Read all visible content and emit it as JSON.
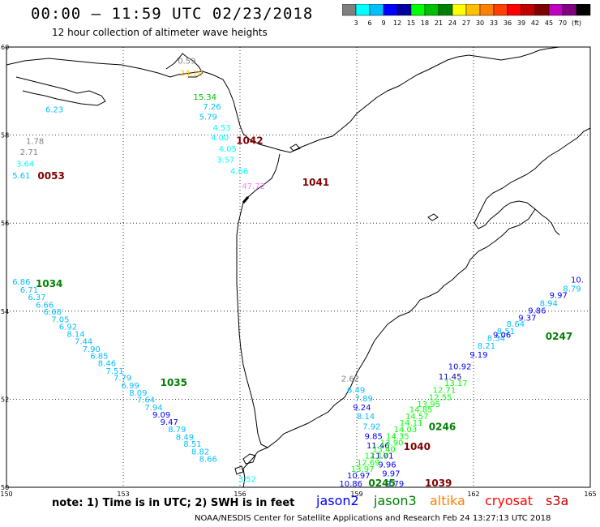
{
  "title": "00:00 – 11:59 UTC 02/23/2018",
  "subtitle": "12 hour collection of altimeter wave heights",
  "colorbar": {
    "colors": [
      "#7f7f7f",
      "#00ffff",
      "#00bfff",
      "#0000ff",
      "#0000a0",
      "#00ff00",
      "#00c000",
      "#008000",
      "#ffff00",
      "#ffc000",
      "#ff8000",
      "#ff4000",
      "#ff0000",
      "#c00000",
      "#800000",
      "#c000c0",
      "#800080",
      "#000000"
    ],
    "labels": [
      "3",
      "6",
      "9",
      "12",
      "15",
      "18",
      "21",
      "24",
      "27",
      "30",
      "33",
      "36",
      "39",
      "42",
      "45",
      "70",
      "(ft)"
    ]
  },
  "axes": {
    "x_ticks": [
      "150",
      "153",
      "156",
      "159",
      "162",
      "165"
    ],
    "y_ticks": [
      "60",
      "58",
      "56",
      "54",
      "52",
      "50"
    ],
    "xlim": [
      150,
      165
    ],
    "ylim": [
      50,
      60
    ]
  },
  "time_labels": [
    {
      "text": "1042",
      "color": "#800000",
      "lon": 155.9,
      "lat": 57.8
    },
    {
      "text": "0053",
      "color": "#800000",
      "lon": 150.8,
      "lat": 57.0
    },
    {
      "text": "1041",
      "color": "#800000",
      "lon": 157.6,
      "lat": 56.85
    },
    {
      "text": "1034",
      "color": "#008000",
      "lon": 150.75,
      "lat": 54.55
    },
    {
      "text": "1035",
      "color": "#008000",
      "lon": 153.95,
      "lat": 52.3
    },
    {
      "text": "0247",
      "color": "#008000",
      "lon": 163.85,
      "lat": 53.35
    },
    {
      "text": "0246",
      "color": "#008000",
      "lon": 160.85,
      "lat": 51.3
    },
    {
      "text": "1040",
      "color": "#800000",
      "lon": 160.2,
      "lat": 50.85
    },
    {
      "text": "0245",
      "color": "#008000",
      "lon": 159.3,
      "lat": 50.02
    },
    {
      "text": "1039",
      "color": "#800000",
      "lon": 160.75,
      "lat": 50.02
    }
  ],
  "wave_points": [
    {
      "text": "0.59",
      "lon": 154.4,
      "lat": 59.62,
      "color": "#7f7f7f"
    },
    {
      "text": "24.10",
      "lon": 154.45,
      "lat": 59.35,
      "color": "#ffc000"
    },
    {
      "text": "15.34",
      "lon": 154.8,
      "lat": 58.8,
      "color": "#00c000"
    },
    {
      "text": "7.26",
      "lon": 155.05,
      "lat": 58.58,
      "color": "#00bfff"
    },
    {
      "text": "5.79",
      "lon": 154.95,
      "lat": 58.35,
      "color": "#00bfff"
    },
    {
      "text": "4.53",
      "lon": 155.3,
      "lat": 58.1,
      "color": "#00ffff"
    },
    {
      "text": "4.00",
      "lon": 155.25,
      "lat": 57.88,
      "color": "#00ffff"
    },
    {
      "text": "4.05",
      "lon": 155.45,
      "lat": 57.62,
      "color": "#00ffff"
    },
    {
      "text": "3.57",
      "lon": 155.4,
      "lat": 57.38,
      "color": "#00ffff"
    },
    {
      "text": "4.66",
      "lon": 155.75,
      "lat": 57.12,
      "color": "#00ffff"
    },
    {
      "text": "47.72",
      "lon": 156.05,
      "lat": 56.78,
      "color": "#ff80ff"
    },
    {
      "text": "6.23",
      "lon": 151.0,
      "lat": 58.52,
      "color": "#00bfff"
    },
    {
      "text": "1.78",
      "lon": 150.5,
      "lat": 57.8,
      "color": "#7f7f7f"
    },
    {
      "text": "2.71",
      "lon": 150.35,
      "lat": 57.55,
      "color": "#7f7f7f"
    },
    {
      "text": "3.64",
      "lon": 150.25,
      "lat": 57.28,
      "color": "#00ffff"
    },
    {
      "text": "5.61",
      "lon": 150.15,
      "lat": 57.02,
      "color": "#00bfff"
    },
    {
      "text": "6.86",
      "lon": 150.15,
      "lat": 54.6,
      "color": "#00bfff"
    },
    {
      "text": "6.71",
      "lon": 150.35,
      "lat": 54.42,
      "color": "#00bfff"
    },
    {
      "text": "6.37",
      "lon": 150.55,
      "lat": 54.25,
      "color": "#00bfff"
    },
    {
      "text": "6.66",
      "lon": 150.75,
      "lat": 54.08,
      "color": "#00bfff"
    },
    {
      "text": "6.68",
      "lon": 150.95,
      "lat": 53.92,
      "color": "#00bfff"
    },
    {
      "text": "7.05",
      "lon": 151.15,
      "lat": 53.75,
      "color": "#00bfff"
    },
    {
      "text": "6.92",
      "lon": 151.35,
      "lat": 53.58,
      "color": "#00bfff"
    },
    {
      "text": "8.14",
      "lon": 151.55,
      "lat": 53.42,
      "color": "#00bfff"
    },
    {
      "text": "7.44",
      "lon": 151.75,
      "lat": 53.25,
      "color": "#00bfff"
    },
    {
      "text": "7.90",
      "lon": 151.95,
      "lat": 53.08,
      "color": "#00bfff"
    },
    {
      "text": "6.85",
      "lon": 152.15,
      "lat": 52.92,
      "color": "#00bfff"
    },
    {
      "text": "8.46",
      "lon": 152.35,
      "lat": 52.75,
      "color": "#00bfff"
    },
    {
      "text": "7.51",
      "lon": 152.55,
      "lat": 52.58,
      "color": "#00bfff"
    },
    {
      "text": "7.79",
      "lon": 152.75,
      "lat": 52.42,
      "color": "#00bfff"
    },
    {
      "text": "6.99",
      "lon": 152.95,
      "lat": 52.25,
      "color": "#00bfff"
    },
    {
      "text": "8.09",
      "lon": 153.15,
      "lat": 52.08,
      "color": "#00bfff"
    },
    {
      "text": "7.64",
      "lon": 153.35,
      "lat": 51.92,
      "color": "#00bfff"
    },
    {
      "text": "7.94",
      "lon": 153.55,
      "lat": 51.75,
      "color": "#00bfff"
    },
    {
      "text": "9.09",
      "lon": 153.75,
      "lat": 51.58,
      "color": "#0000ff"
    },
    {
      "text": "9.47",
      "lon": 153.95,
      "lat": 51.42,
      "color": "#0000ff"
    },
    {
      "text": "8.79",
      "lon": 154.15,
      "lat": 51.25,
      "color": "#00bfff"
    },
    {
      "text": "8.49",
      "lon": 154.35,
      "lat": 51.08,
      "color": "#00bfff"
    },
    {
      "text": "8.51",
      "lon": 154.55,
      "lat": 50.92,
      "color": "#00bfff"
    },
    {
      "text": "8.82",
      "lon": 154.75,
      "lat": 50.75,
      "color": "#00bfff"
    },
    {
      "text": "8.66",
      "lon": 154.95,
      "lat": 50.58,
      "color": "#00bfff"
    },
    {
      "text": "3.52",
      "lon": 155.95,
      "lat": 50.12,
      "color": "#00ffff"
    },
    {
      "text": "2.62",
      "lon": 158.6,
      "lat": 52.4,
      "color": "#7f7f7f"
    },
    {
      "text": "6.49",
      "lon": 158.75,
      "lat": 52.15,
      "color": "#00bfff"
    },
    {
      "text": "7.89",
      "lon": 158.95,
      "lat": 51.95,
      "color": "#00bfff"
    },
    {
      "text": "9.24",
      "lon": 158.9,
      "lat": 51.75,
      "color": "#0000ff"
    },
    {
      "text": "8.14",
      "lon": 159.0,
      "lat": 51.55,
      "color": "#00bfff"
    },
    {
      "text": "7.92",
      "lon": 159.15,
      "lat": 51.32,
      "color": "#00bfff"
    },
    {
      "text": "9.85",
      "lon": 159.2,
      "lat": 51.1,
      "color": "#0000ff"
    },
    {
      "text": "11.46",
      "lon": 159.25,
      "lat": 50.88,
      "color": "#0000a0"
    },
    {
      "text": "11.01",
      "lon": 159.35,
      "lat": 50.65,
      "color": "#0000a0"
    },
    {
      "text": "9.96",
      "lon": 159.55,
      "lat": 50.45,
      "color": "#0000ff"
    },
    {
      "text": "9.97",
      "lon": 159.65,
      "lat": 50.25,
      "color": "#0000ff"
    },
    {
      "text": "10.97",
      "lon": 158.75,
      "lat": 50.2,
      "color": "#0000ff"
    },
    {
      "text": "10.86",
      "lon": 158.55,
      "lat": 50.02,
      "color": "#0000ff"
    },
    {
      "text": "9.79",
      "lon": 159.75,
      "lat": 50.02,
      "color": "#0000ff"
    },
    {
      "text": "10.92",
      "lon": 161.35,
      "lat": 52.68,
      "color": "#0000ff"
    },
    {
      "text": "11.45",
      "lon": 161.1,
      "lat": 52.45,
      "color": "#0000a0"
    },
    {
      "text": "9.19",
      "lon": 161.9,
      "lat": 52.95,
      "color": "#0000ff"
    },
    {
      "text": "8.21",
      "lon": 162.1,
      "lat": 53.15,
      "color": "#00bfff"
    },
    {
      "text": "8.34",
      "lon": 162.35,
      "lat": 53.32,
      "color": "#00bfff"
    },
    {
      "text": "8.51",
      "lon": 162.6,
      "lat": 53.48,
      "color": "#00bfff"
    },
    {
      "text": "8.64",
      "lon": 162.85,
      "lat": 53.65,
      "color": "#00bfff"
    },
    {
      "text": "9.06",
      "lon": 162.5,
      "lat": 53.4,
      "color": "#0000ff"
    },
    {
      "text": "9.37",
      "lon": 163.15,
      "lat": 53.78,
      "color": "#0000ff"
    },
    {
      "text": "9.86",
      "lon": 163.4,
      "lat": 53.95,
      "color": "#0000ff"
    },
    {
      "text": "8.94",
      "lon": 163.7,
      "lat": 54.12,
      "color": "#00bfff"
    },
    {
      "text": "9.97",
      "lon": 163.95,
      "lat": 54.3,
      "color": "#0000ff"
    },
    {
      "text": "8.79",
      "lon": 164.3,
      "lat": 54.45,
      "color": "#00bfff"
    },
    {
      "text": "10.",
      "lon": 164.5,
      "lat": 54.65,
      "color": "#0000ff"
    },
    {
      "text": "13.17",
      "lon": 161.25,
      "lat": 52.3,
      "color": "#00ff00"
    },
    {
      "text": "12.71",
      "lon": 160.95,
      "lat": 52.15,
      "color": "#00ff00"
    },
    {
      "text": "12.55",
      "lon": 160.85,
      "lat": 51.98,
      "color": "#00ff00"
    },
    {
      "text": "13.95",
      "lon": 160.55,
      "lat": 51.82,
      "color": "#00ff00"
    },
    {
      "text": "14.85",
      "lon": 160.35,
      "lat": 51.7,
      "color": "#00ff00"
    },
    {
      "text": "14.57",
      "lon": 160.25,
      "lat": 51.55,
      "color": "#00ff00"
    },
    {
      "text": "14.11",
      "lon": 160.1,
      "lat": 51.4,
      "color": "#00ff00"
    },
    {
      "text": "14.03",
      "lon": 159.95,
      "lat": 51.25,
      "color": "#00ff00"
    },
    {
      "text": "14.35",
      "lon": 159.75,
      "lat": 51.1,
      "color": "#00ff00"
    },
    {
      "text": "13.90",
      "lon": 159.6,
      "lat": 50.95,
      "color": "#00ff00"
    },
    {
      "text": "13.40",
      "lon": 159.4,
      "lat": 50.8,
      "color": "#00ff00"
    },
    {
      "text": "12.17",
      "lon": 159.2,
      "lat": 50.65,
      "color": "#00ff00"
    },
    {
      "text": "12.69",
      "lon": 159.0,
      "lat": 50.5,
      "color": "#00ff00"
    },
    {
      "text": "13.97",
      "lon": 158.85,
      "lat": 50.35,
      "color": "#00ff00"
    }
  ],
  "legend": {
    "note": "note: 1) Time is in UTC; 2) SWH is in feet",
    "satellites": [
      {
        "name": "jason2",
        "color": "#0000ff"
      },
      {
        "name": "jason3",
        "color": "#008000"
      },
      {
        "name": "altika",
        "color": "#ff8000"
      },
      {
        "name": "cryosat",
        "color": "#ff0000"
      },
      {
        "name": "s3a",
        "color": "#c00000"
      }
    ]
  },
  "footer": "NOAA/NESDIS Center for Satellite Applications and Research     Feb 24 13:27:13 UTC 2018"
}
